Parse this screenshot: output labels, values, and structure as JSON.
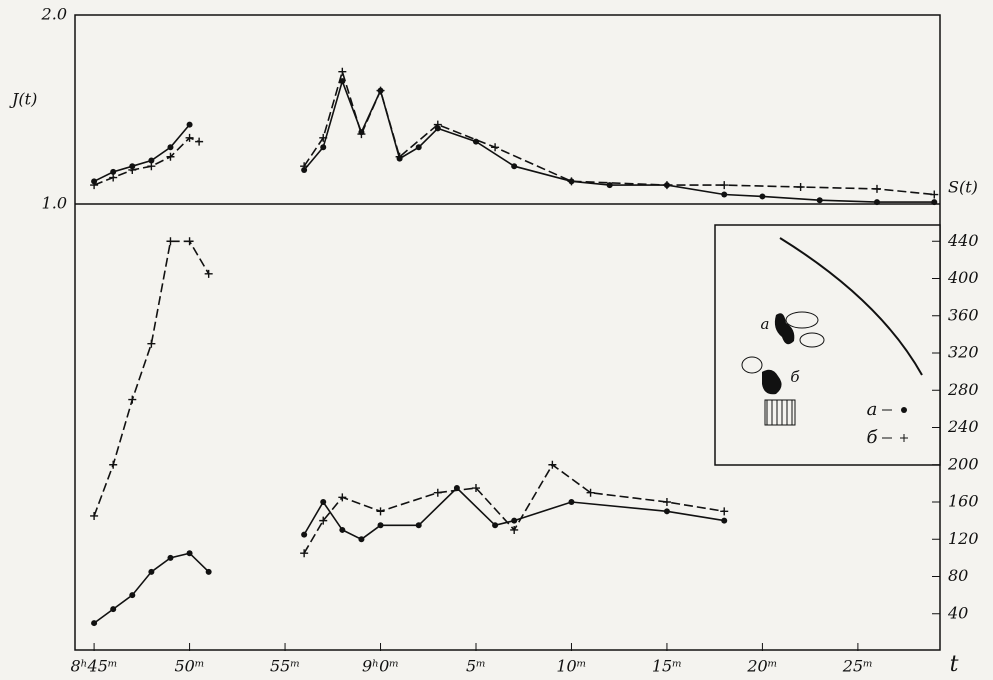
{
  "chart_data": [
    {
      "type": "line",
      "y_label": "J(t)",
      "xlim": [
        44,
        89.3
      ],
      "ylim": [
        1.0,
        2.0
      ],
      "yticks": [
        {
          "value": 1.0,
          "label": "1.0"
        },
        {
          "value": 2.0,
          "label": "2.0"
        }
      ],
      "series": [
        {
          "name": "а",
          "color": "#111",
          "marker": "dot",
          "linestyle": "solid",
          "x": [
            45,
            46,
            47,
            48,
            49,
            50,
            53,
            56,
            57,
            58,
            59,
            60,
            61,
            62,
            63,
            65,
            67,
            70,
            72,
            75,
            78,
            80,
            83,
            86,
            89
          ],
          "values": [
            1.12,
            1.17,
            1.2,
            1.23,
            1.3,
            1.42,
            null,
            1.18,
            1.3,
            1.65,
            1.38,
            1.6,
            1.24,
            1.3,
            1.4,
            1.33,
            1.2,
            1.12,
            1.1,
            1.1,
            1.05,
            1.04,
            1.02,
            1.01,
            1.01
          ]
        },
        {
          "name": "б",
          "color": "#111",
          "marker": "plus",
          "linestyle": "dashed",
          "x": [
            45,
            46,
            47,
            48,
            49,
            50,
            50.5,
            53,
            56,
            57,
            58,
            59,
            60,
            61,
            63,
            66,
            70,
            75,
            78,
            82,
            86,
            89
          ],
          "values": [
            1.1,
            1.14,
            1.18,
            1.2,
            1.25,
            1.35,
            1.33,
            null,
            1.2,
            1.35,
            1.7,
            1.37,
            1.6,
            1.25,
            1.42,
            1.3,
            1.12,
            1.1,
            1.1,
            1.09,
            1.08,
            1.05
          ]
        }
      ]
    },
    {
      "type": "line",
      "y_label": "S(t)",
      "x_label": "t",
      "xlim": [
        44,
        89.3
      ],
      "ylim": [
        0,
        480
      ],
      "xticks": [
        {
          "value": 45,
          "label": "8ʰ45ᵐ"
        },
        {
          "value": 50,
          "label": "50ᵐ"
        },
        {
          "value": 55,
          "label": "55ᵐ"
        },
        {
          "value": 60,
          "label": "9ʰ0ᵐ"
        },
        {
          "value": 65,
          "label": "5ᵐ"
        },
        {
          "value": 70,
          "label": "10ᵐ"
        },
        {
          "value": 75,
          "label": "15ᵐ"
        },
        {
          "value": 80,
          "label": "20ᵐ"
        },
        {
          "value": 85,
          "label": "25ᵐ"
        }
      ],
      "yticks": [
        40,
        80,
        120,
        160,
        200,
        240,
        280,
        320,
        360,
        400,
        440
      ],
      "series": [
        {
          "name": "а",
          "color": "#111",
          "marker": "dot",
          "linestyle": "solid",
          "x": [
            45,
            46,
            47,
            48,
            49,
            50,
            51,
            53,
            56,
            57,
            58,
            59,
            60,
            62,
            64,
            66,
            67,
            70,
            75,
            78
          ],
          "values": [
            30,
            45,
            60,
            85,
            100,
            105,
            85,
            null,
            125,
            160,
            130,
            120,
            135,
            135,
            175,
            135,
            140,
            160,
            150,
            140
          ]
        },
        {
          "name": "б",
          "color": "#111",
          "marker": "plus",
          "linestyle": "dashed",
          "x": [
            45,
            46,
            47,
            48,
            49,
            50,
            51,
            53,
            56,
            57,
            58,
            60,
            63,
            65,
            67,
            69,
            71,
            75,
            78
          ],
          "values": [
            145,
            200,
            270,
            330,
            440,
            440,
            405,
            null,
            105,
            140,
            165,
            150,
            170,
            175,
            130,
            200,
            170,
            160,
            150
          ]
        }
      ]
    }
  ]
}
